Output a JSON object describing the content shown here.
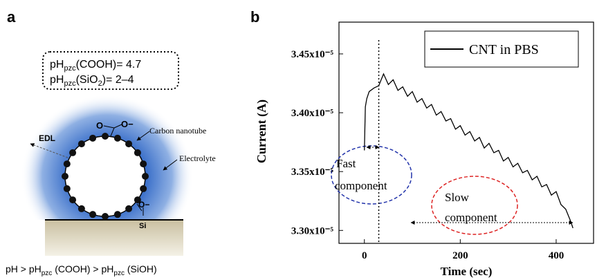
{
  "panel_a": {
    "label": "a",
    "box_lines": [
      {
        "base": "pH",
        "sub": "pzc",
        "rest": "(COOH)= 4.7"
      },
      {
        "base": "pH",
        "sub": "pzc",
        "rest": "(SiO",
        "sub2": "2",
        "rest2": ")= 2–4"
      }
    ],
    "labels": {
      "o_top": "O",
      "o_minus_top": "O−",
      "nanotube": "Carbon nanotube",
      "edl": "EDL",
      "electrolyte": "Electrolyte",
      "o_minus_bottom": "O−",
      "si": "Si"
    },
    "footer": {
      "p1": "pH > pH",
      "s1": "pzc",
      "p2": " (COOH) > pH",
      "s2": "pzc",
      "p3": " (SiOH)"
    }
  },
  "chart_data": {
    "type": "line",
    "panel_label": "b",
    "xlabel": "Time (sec)",
    "ylabel": "Current (A)",
    "x": [
      0,
      2,
      5,
      10,
      20,
      30,
      40,
      50,
      60,
      70,
      80,
      90,
      100,
      110,
      120,
      130,
      140,
      150,
      160,
      170,
      180,
      190,
      200,
      210,
      220,
      230,
      240,
      250,
      260,
      270,
      280,
      290,
      300,
      310,
      320,
      330,
      340,
      350,
      360,
      370,
      380,
      390,
      400,
      410,
      420,
      430,
      435
    ],
    "series": [
      {
        "name": "CNT in PBS",
        "color": "#000000",
        "values": [
          3.368e-05,
          3.405e-05,
          3.412e-05,
          3.418e-05,
          3.421e-05,
          3.423e-05,
          3.433e-05,
          3.424e-05,
          3.428e-05,
          3.419e-05,
          3.422e-05,
          3.414e-05,
          3.418e-05,
          3.409e-05,
          3.412e-05,
          3.404e-05,
          3.407e-05,
          3.398e-05,
          3.401e-05,
          3.393e-05,
          3.395e-05,
          3.386e-05,
          3.389e-05,
          3.381e-05,
          3.384e-05,
          3.376e-05,
          3.379e-05,
          3.37e-05,
          3.374e-05,
          3.366e-05,
          3.368e-05,
          3.359e-05,
          3.362e-05,
          3.354e-05,
          3.357e-05,
          3.349e-05,
          3.351e-05,
          3.343e-05,
          3.346e-05,
          3.337e-05,
          3.339e-05,
          3.33e-05,
          3.333e-05,
          3.322e-05,
          3.318e-05,
          3.308e-05,
          3.302e-05
        ]
      }
    ],
    "xlim": [
      -53,
      478
    ],
    "ylim": [
      3.289e-05,
      3.477e-05
    ],
    "xticks": [
      0,
      200,
      400
    ],
    "yticks": [
      {
        "value": 3.3e-05,
        "label": "3.30x10⁻⁵"
      },
      {
        "value": 3.35e-05,
        "label": "3.35x10⁻⁵"
      },
      {
        "value": 3.4e-05,
        "label": "3.40x10⁻⁵"
      },
      {
        "value": 3.45e-05,
        "label": "3.45x10⁻⁵"
      }
    ],
    "vline_x": 30,
    "annotations": {
      "fast_1": "Fast",
      "fast_2": "component",
      "slow_1": "Slow",
      "slow_2": "component"
    }
  }
}
